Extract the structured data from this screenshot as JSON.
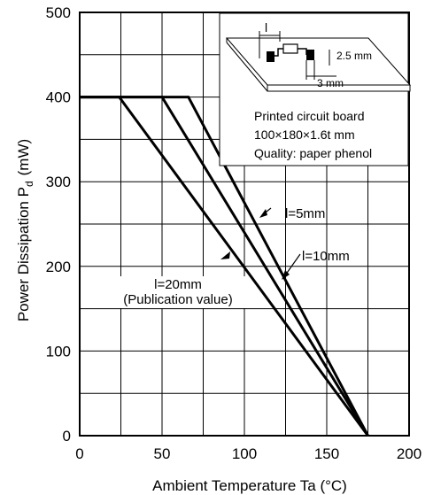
{
  "chart_data": {
    "type": "line",
    "xlabel": "Ambient Temperature Ta (°C)",
    "ylabel_main": "Power Dissipation P",
    "ylabel_sub": "d",
    "ylabel_unit": "(mW)",
    "xlim": [
      0,
      200
    ],
    "ylim": [
      0,
      500
    ],
    "xticks": [
      "0",
      "50",
      "100",
      "150",
      "200"
    ],
    "yticks": [
      "0",
      "100",
      "200",
      "300",
      "400",
      "500"
    ],
    "grid": true,
    "series": [
      {
        "name": "l=5mm",
        "x": [
          0,
          66,
          175
        ],
        "y": [
          400,
          400,
          0
        ]
      },
      {
        "name": "l=10mm",
        "x": [
          0,
          50,
          175
        ],
        "y": [
          400,
          400,
          0
        ]
      },
      {
        "name": "l=20mm (Publication value)",
        "x": [
          0,
          24,
          175
        ],
        "y": [
          400,
          400,
          0
        ]
      }
    ],
    "annotations": {
      "l5": "l=5mm",
      "l10": "l=10mm",
      "l20_line1": "l=20mm",
      "l20_line2": "(Publication value)"
    },
    "inset": {
      "line1": "Printed circuit board",
      "line2": "100×180×1.6t mm",
      "line3": "Quality: paper phenol",
      "dim_l": "l",
      "dim_25": "2.5 mm",
      "dim_3": "3 mm"
    }
  }
}
